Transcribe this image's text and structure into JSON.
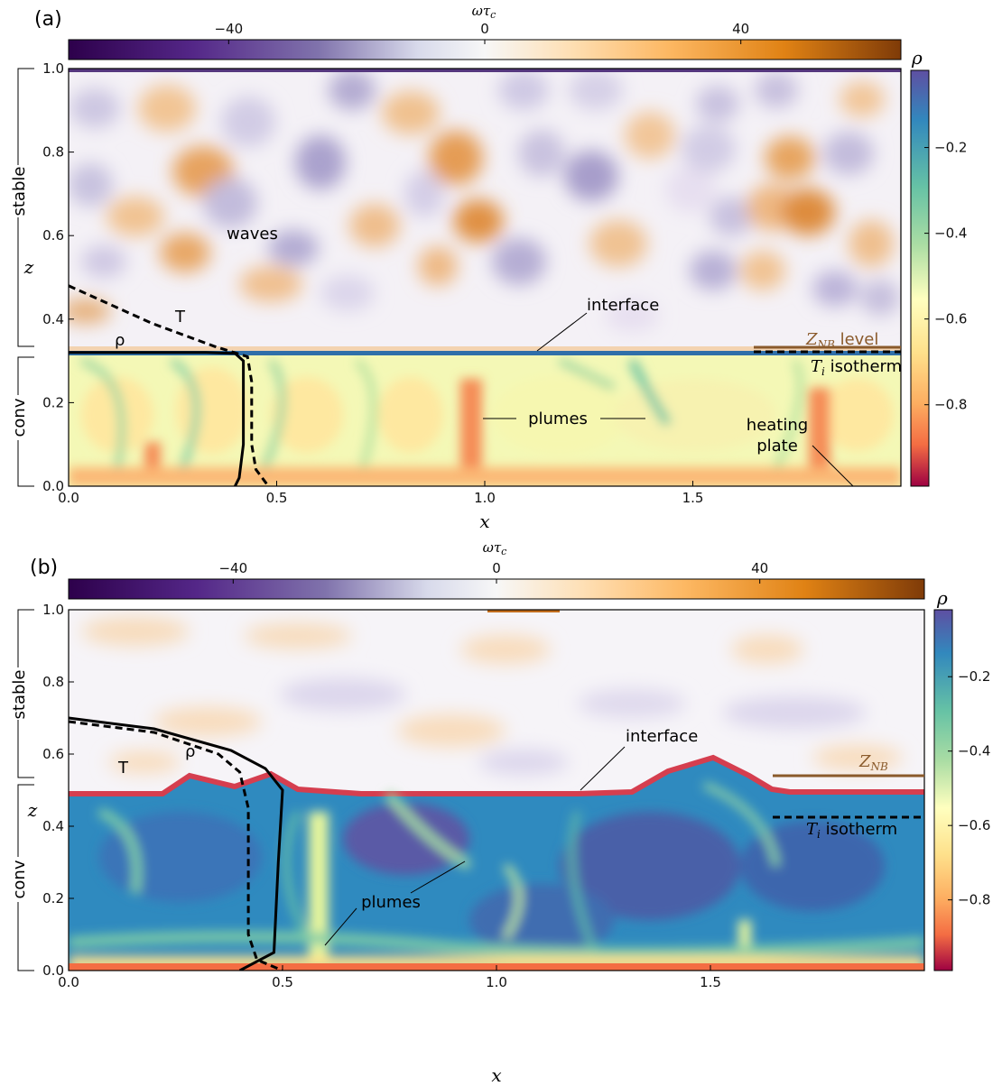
{
  "chart_data": [
    {
      "type": "heatmap",
      "panel_label": "(a)",
      "colorbar_top": {
        "label": "ωτ_c",
        "ticks": [
          "−40",
          "0",
          "40"
        ],
        "range": [
          -65,
          65
        ],
        "cmap": "PuOr"
      },
      "colorbar_right": {
        "label": "ρ",
        "ticks": [
          "−0.2",
          "−0.4",
          "−0.6",
          "−0.8"
        ],
        "range": [
          -0.99,
          -0.02
        ],
        "cmap": "Spectral"
      },
      "x_ticks": [
        "0.0",
        "0.5",
        "1.0",
        "1.5"
      ],
      "y_ticks": [
        "0.0",
        "0.2",
        "0.4",
        "0.6",
        "0.8",
        "1.0"
      ],
      "xlabel": "x",
      "ylabel": "z",
      "xlim": [
        0,
        2
      ],
      "ylim": [
        0,
        1
      ],
      "interface_z": 0.32,
      "zones": {
        "stable": "stable",
        "conv": "conv"
      },
      "annotations": {
        "waves": "waves",
        "interface": "interface",
        "plumes": "plumes",
        "heating": "heating",
        "plate": "plate",
        "T": "T",
        "rho": "ρ",
        "znb_label": "Z_NB level",
        "ti_label": "T_i isotherm"
      },
      "profile_T": [
        [
          0.0,
          0.48
        ],
        [
          0.2,
          0.39
        ],
        [
          0.35,
          0.335
        ],
        [
          0.43,
          0.31
        ],
        [
          0.44,
          0.25
        ],
        [
          0.44,
          0.1
        ],
        [
          0.45,
          0.04
        ],
        [
          0.48,
          0.0
        ]
      ],
      "profile_rho": [
        [
          0.0,
          0.32
        ],
        [
          0.2,
          0.32
        ],
        [
          0.33,
          0.32
        ],
        [
          0.4,
          0.318
        ],
        [
          0.42,
          0.3
        ],
        [
          0.42,
          0.1
        ],
        [
          0.41,
          0.02
        ],
        [
          0.4,
          0.0
        ]
      ]
    },
    {
      "type": "heatmap",
      "panel_label": "(b)",
      "colorbar_top": {
        "label": "ωτ_c",
        "ticks": [
          "−40",
          "0",
          "40"
        ],
        "range": [
          -65,
          65
        ],
        "cmap": "PuOr"
      },
      "colorbar_right": {
        "label": "ρ",
        "ticks": [
          "−0.2",
          "−0.4",
          "−0.6",
          "−0.8"
        ],
        "range": [
          -0.99,
          -0.02
        ],
        "cmap": "Spectral"
      },
      "x_ticks": [
        "0.0",
        "0.5",
        "1.0",
        "1.5"
      ],
      "y_ticks": [
        "0.0",
        "0.2",
        "0.4",
        "0.6",
        "0.8",
        "1.0"
      ],
      "xlabel": "x",
      "ylabel": "z",
      "xlim": [
        0,
        2
      ],
      "ylim": [
        0,
        1
      ],
      "interface_z": 0.57,
      "zones": {
        "stable": "stable",
        "conv": "conv"
      },
      "annotations": {
        "interface": "interface",
        "plumes": "plumes",
        "T": "T",
        "rho": "ρ",
        "znb_label": "Z_NB",
        "ti_label": "T_i isotherm"
      },
      "profile_T": [
        [
          0.0,
          0.69
        ],
        [
          0.2,
          0.66
        ],
        [
          0.35,
          0.6
        ],
        [
          0.4,
          0.55
        ],
        [
          0.42,
          0.45
        ],
        [
          0.42,
          0.1
        ],
        [
          0.44,
          0.03
        ],
        [
          0.5,
          0.0
        ]
      ],
      "profile_rho": [
        [
          0.0,
          0.7
        ],
        [
          0.2,
          0.67
        ],
        [
          0.38,
          0.61
        ],
        [
          0.46,
          0.56
        ],
        [
          0.5,
          0.5
        ],
        [
          0.49,
          0.3
        ],
        [
          0.48,
          0.05
        ],
        [
          0.4,
          0.0
        ]
      ]
    }
  ]
}
